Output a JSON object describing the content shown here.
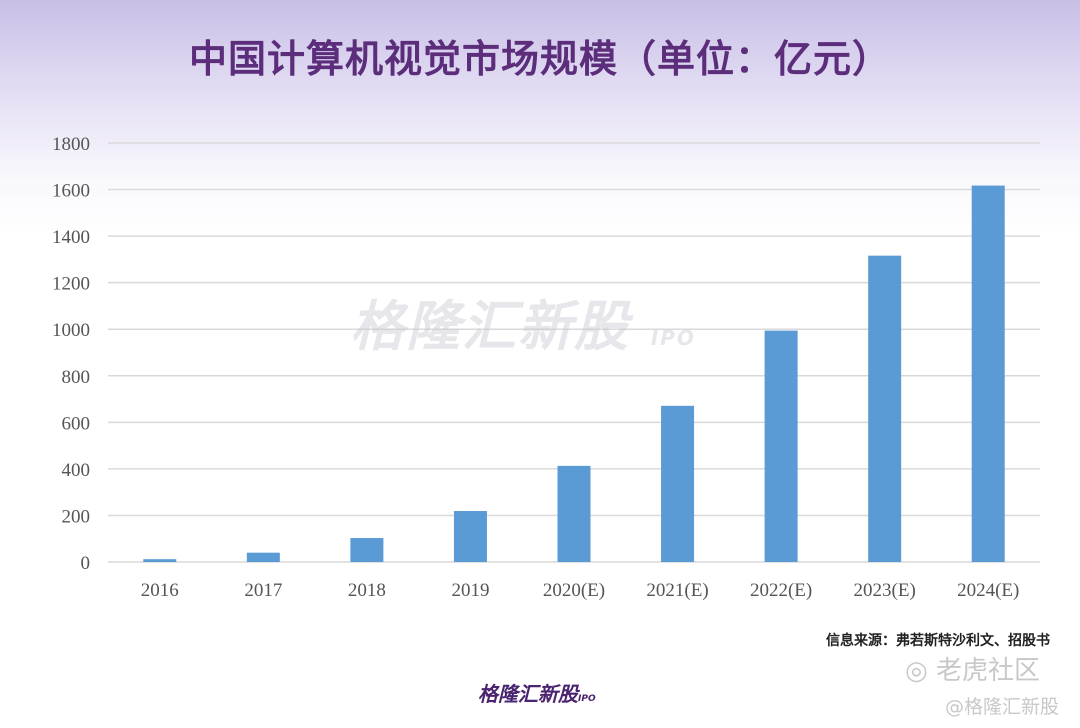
{
  "chart_data": {
    "type": "bar",
    "title": "中国计算机视觉市场规模（单位：亿元）",
    "xlabel": "",
    "ylabel": "",
    "categories": [
      "2016",
      "2017",
      "2018",
      "2019",
      "2020(E)",
      "2021(E)",
      "2022(E)",
      "2023(E)",
      "2024(E)"
    ],
    "values": [
      12,
      40,
      103,
      219,
      413,
      671,
      994,
      1316,
      1617
    ],
    "ylim": [
      0,
      1800
    ],
    "yticks": [
      0,
      200,
      400,
      600,
      800,
      1000,
      1200,
      1400,
      1600,
      1800
    ],
    "grid": true,
    "bar_color": "#5b9bd5"
  },
  "source": "信息来源：弗若斯特沙利文、招股书",
  "watermark": {
    "main": "格隆汇新股",
    "ipo": "IPO",
    "tiger": "老虎社区",
    "handle": "@格隆汇新股"
  },
  "logo": {
    "text": "格隆汇新股",
    "ipo": "IPO"
  }
}
